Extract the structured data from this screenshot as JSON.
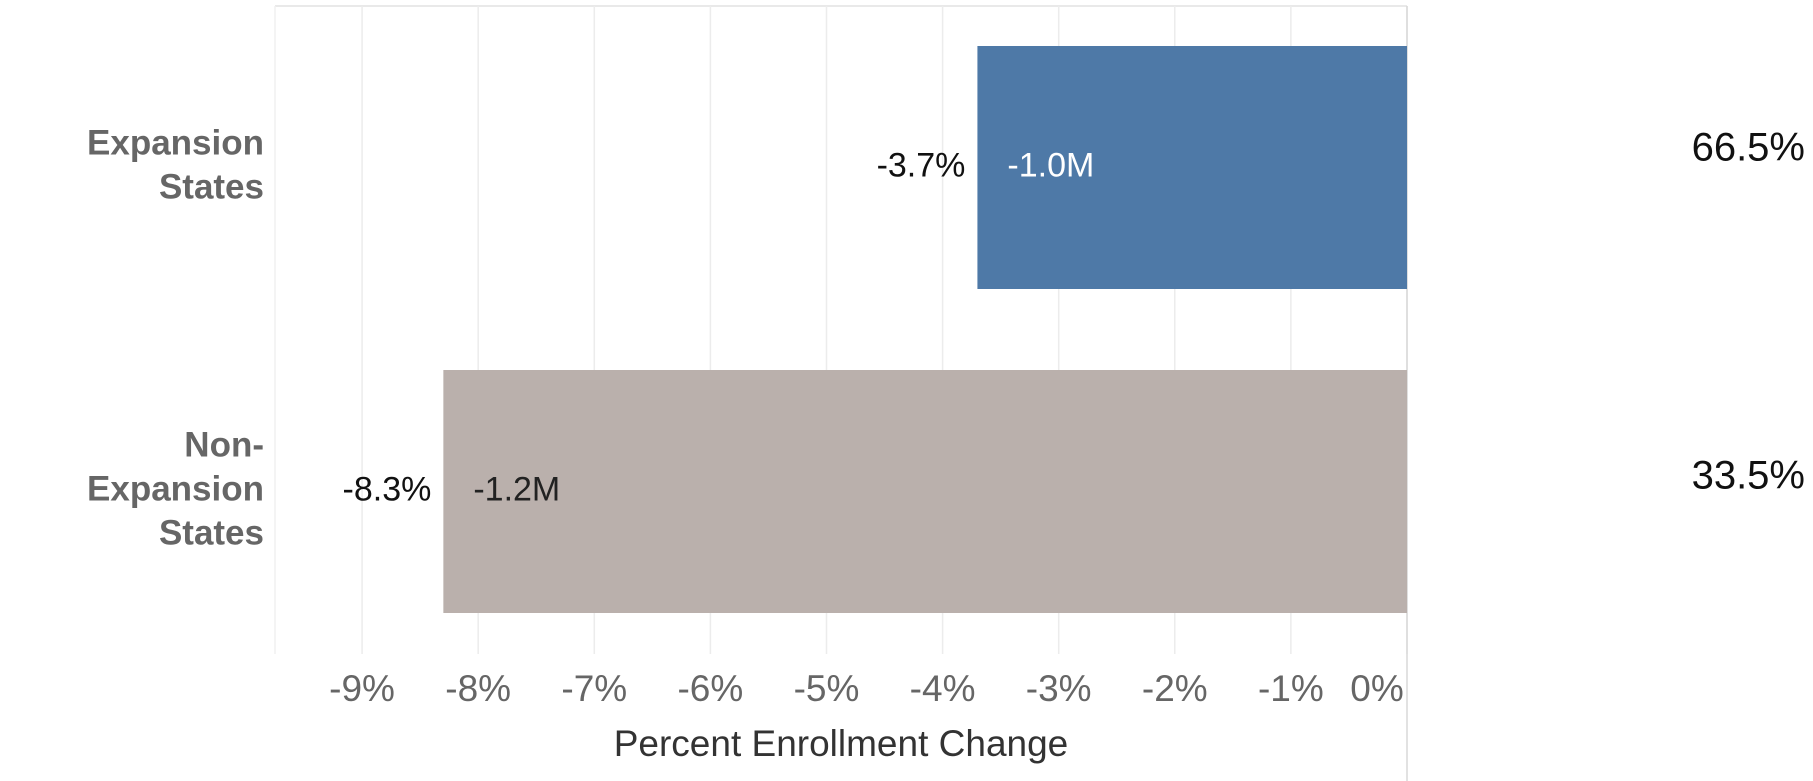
{
  "chart_data": {
    "type": "hbar",
    "categories": [
      "Expansion States",
      "Non-Expansion States"
    ],
    "values": [
      -3.7,
      -8.3
    ],
    "value_labels": [
      "-3.7%",
      "-8.3%"
    ],
    "colors": [
      "#4e79a7",
      "#bab0ac"
    ],
    "enrollment_change": [
      -1000000,
      -1200000
    ],
    "enrollment_change_labels": [
      "-1.0M",
      "-1.2M"
    ],
    "enrollment_label_colors": [
      "#ffffff",
      "#222222"
    ],
    "share": [
      66.5,
      33.5
    ],
    "share_labels": [
      "66.5%",
      "33.5%"
    ],
    "xlabel": "Percent Enrollment Change",
    "xlim": [
      -9.75,
      0
    ],
    "xticks": [
      {
        "value": -9,
        "label": "-9%"
      },
      {
        "value": -8,
        "label": "-8%"
      },
      {
        "value": -7,
        "label": "-7%"
      },
      {
        "value": -6,
        "label": "-6%"
      },
      {
        "value": -5,
        "label": "-5%"
      },
      {
        "value": -4,
        "label": "-4%"
      },
      {
        "value": -3,
        "label": "-3%"
      },
      {
        "value": -2,
        "label": "-2%"
      },
      {
        "value": -1,
        "label": "-1%"
      },
      {
        "value": 0,
        "label": "0%"
      }
    ],
    "grid": true
  }
}
